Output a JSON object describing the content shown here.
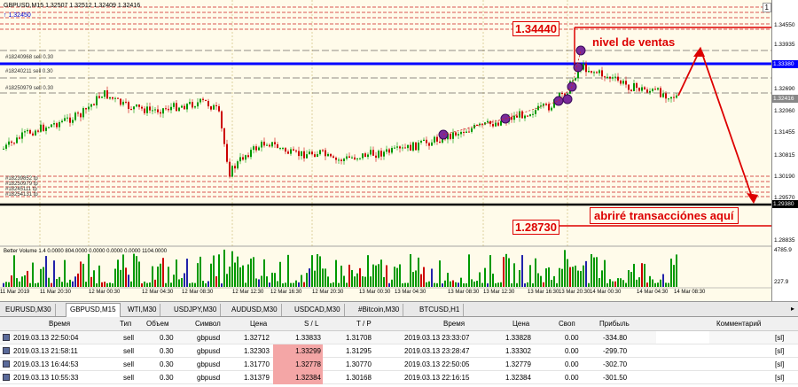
{
  "chart": {
    "title": "GBPUSD,M15  1.32507 1.32512 1.32409 1.32416",
    "indicator_arrow": "↑ 1.32450",
    "corner_button": "1",
    "order_labels": [
      "#18240968 sell 0.30",
      "#18240211 sell 0.30",
      "#18250979 sell 0.30",
      "#18239852 tp",
      "#18250979 tp",
      "#18245111 tp",
      "#18254131 tp"
    ],
    "price_ticks": [
      "1.34550",
      "1.33935",
      "1.33380",
      "1.32690",
      "1.32416",
      "1.32060",
      "1.31455",
      "1.30815",
      "1.30190",
      "1.29570",
      "1.29380",
      "1.28835"
    ],
    "price_highlight_blue": "1.33380",
    "price_highlight_gray": "1.32416",
    "price_highlight_black": "1.29380",
    "annotation_high": "1.34440",
    "annotation_low": "1.28730",
    "annotation_sell": "nivel de ventas",
    "annotation_buy": "abriré transacciónes aquí",
    "volume_label": "Better Volume 1.4 0.0000 804.0000 0.0000 0.0000 0.0000 1104.0000",
    "volume_ticks": [
      "4785.9",
      "227.9"
    ],
    "time_ticks": [
      "11 Mar 2019",
      "11 Mar 20:30",
      "12 Mar 00:30",
      "12 Mar 04:30",
      "12 Mar 08:30",
      "12 Mar 12:30",
      "12 Mar 16:30",
      "12 Mar 20:30",
      "13 Mar 00:30",
      "13 Mar 04:30",
      "13 Mar 08:30",
      "13 Mar 12:30",
      "13 Mar 16:30",
      "13 Mar 20:30",
      "14 Mar 00:30",
      "14 Mar 04:30",
      "14 Mar 08:30"
    ],
    "colors": {
      "background": "#fffbea",
      "bull": "#009900",
      "bear": "#cc0000",
      "blue_line": "#0000ff",
      "annotation": "#dd0000"
    }
  },
  "tabs": [
    "EURUSD,M30",
    "GBPUSD,M15",
    "WTI,M30",
    "USDJPY,M30",
    "AUDUSD,M30",
    "USDCAD,M30",
    "#Bitcoin,M30",
    "BTCUSD,H1"
  ],
  "active_tab": "GBPUSD,M15",
  "table": {
    "headers": [
      "Время",
      "Тип",
      "Объем",
      "Символ",
      "Цена",
      "S / L",
      "T / P",
      "Время",
      "Цена",
      "Своп",
      "Прибыль",
      "Комментарий"
    ],
    "rows": [
      {
        "open_time": "2019.03.13 22:50:04",
        "type": "sell",
        "volume": "0.30",
        "symbol": "gbpusd",
        "price": "1.32712",
        "sl": "1.33833",
        "tp": "1.31708",
        "time": "2019.03.13 23:33:07",
        "cur_price": "1.33828",
        "swap": "0.00",
        "profit": "-334.80",
        "comment": "[sl]",
        "sl_red": false
      },
      {
        "open_time": "2019.03.13 21:58:11",
        "type": "sell",
        "volume": "0.30",
        "symbol": "gbpusd",
        "price": "1.32303",
        "sl": "1.33299",
        "tp": "1.31295",
        "time": "2019.03.13 23:28:47",
        "cur_price": "1.33302",
        "swap": "0.00",
        "profit": "-299.70",
        "comment": "[sl]",
        "sl_red": true
      },
      {
        "open_time": "2019.03.13 16:44:53",
        "type": "sell",
        "volume": "0.30",
        "symbol": "gbpusd",
        "price": "1.31770",
        "sl": "1.32778",
        "tp": "1.30770",
        "time": "2019.03.13 22:50:05",
        "cur_price": "1.32779",
        "swap": "0.00",
        "profit": "-302.70",
        "comment": "[sl]",
        "sl_red": true
      },
      {
        "open_time": "2019.03.13 10:55:33",
        "type": "sell",
        "volume": "0.30",
        "symbol": "gbpusd",
        "price": "1.31379",
        "sl": "1.32384",
        "tp": "1.30168",
        "time": "2019.03.13 22:16:15",
        "cur_price": "1.32384",
        "swap": "0.00",
        "profit": "-301.50",
        "comment": "[sl]",
        "sl_red": true
      }
    ]
  }
}
